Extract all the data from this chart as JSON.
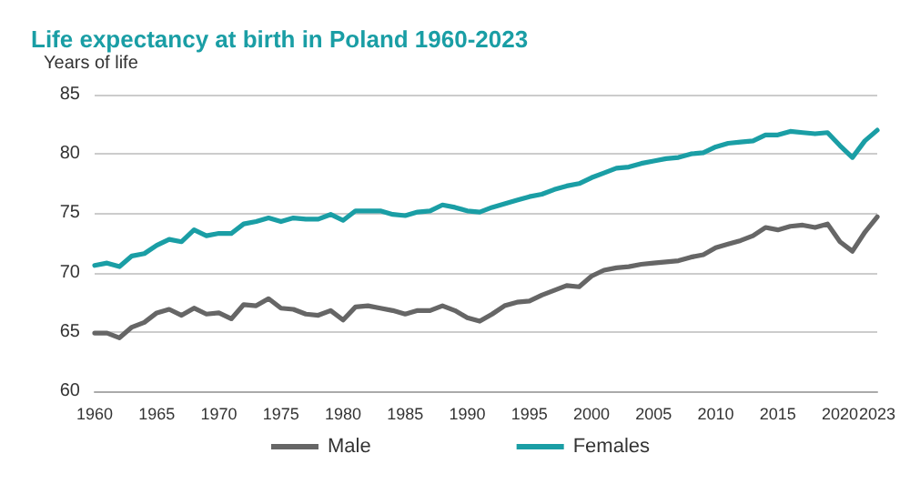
{
  "chart_data": {
    "type": "line",
    "title": "Life expectancy at birth in Poland 1960-2023",
    "ylabel": "Years of life",
    "x": [
      1960,
      1961,
      1962,
      1963,
      1964,
      1965,
      1966,
      1967,
      1968,
      1969,
      1970,
      1971,
      1972,
      1973,
      1974,
      1975,
      1976,
      1977,
      1978,
      1979,
      1980,
      1981,
      1982,
      1983,
      1984,
      1985,
      1986,
      1987,
      1988,
      1989,
      1990,
      1991,
      1992,
      1993,
      1994,
      1995,
      1996,
      1997,
      1998,
      1999,
      2000,
      2001,
      2002,
      2003,
      2004,
      2005,
      2006,
      2007,
      2008,
      2009,
      2010,
      2011,
      2012,
      2013,
      2014,
      2015,
      2016,
      2017,
      2018,
      2019,
      2020,
      2021,
      2022,
      2023
    ],
    "series": [
      {
        "name": "Male",
        "color": "#666666",
        "values": [
          64.9,
          64.9,
          64.5,
          65.4,
          65.8,
          66.6,
          66.9,
          66.4,
          67.0,
          66.5,
          66.6,
          66.1,
          67.3,
          67.2,
          67.8,
          67.0,
          66.9,
          66.5,
          66.4,
          66.8,
          66.0,
          67.1,
          67.2,
          67.0,
          66.8,
          66.5,
          66.8,
          66.8,
          67.2,
          66.8,
          66.2,
          65.9,
          66.5,
          67.2,
          67.5,
          67.6,
          68.1,
          68.5,
          68.9,
          68.8,
          69.7,
          70.2,
          70.4,
          70.5,
          70.7,
          70.8,
          70.9,
          71.0,
          71.3,
          71.5,
          72.1,
          72.4,
          72.7,
          73.1,
          73.8,
          73.6,
          73.9,
          74.0,
          73.8,
          74.1,
          72.6,
          71.8,
          73.4,
          74.7
        ]
      },
      {
        "name": "Females",
        "color": "#1a9ea5",
        "values": [
          70.6,
          70.8,
          70.5,
          71.4,
          71.6,
          72.3,
          72.8,
          72.6,
          73.6,
          73.1,
          73.3,
          73.3,
          74.1,
          74.3,
          74.6,
          74.3,
          74.6,
          74.5,
          74.5,
          74.9,
          74.4,
          75.2,
          75.2,
          75.2,
          74.9,
          74.8,
          75.1,
          75.2,
          75.7,
          75.5,
          75.2,
          75.1,
          75.5,
          75.8,
          76.1,
          76.4,
          76.6,
          77.0,
          77.3,
          77.5,
          78.0,
          78.4,
          78.8,
          78.9,
          79.2,
          79.4,
          79.6,
          79.7,
          80.0,
          80.1,
          80.6,
          80.9,
          81.0,
          81.1,
          81.6,
          81.6,
          81.9,
          81.8,
          81.7,
          81.8,
          80.7,
          79.7,
          81.1,
          82.0
        ]
      }
    ],
    "xlim": [
      1960,
      2023
    ],
    "xticks": [
      1960,
      1965,
      1970,
      1975,
      1980,
      1985,
      1990,
      1995,
      2000,
      2005,
      2010,
      2015,
      2020,
      2023
    ],
    "ylim": [
      60,
      85
    ],
    "yticks": [
      60,
      65,
      70,
      75,
      80,
      85
    ],
    "grid": "y",
    "legend": "bottom",
    "marker": "none",
    "line_style": "solid"
  }
}
